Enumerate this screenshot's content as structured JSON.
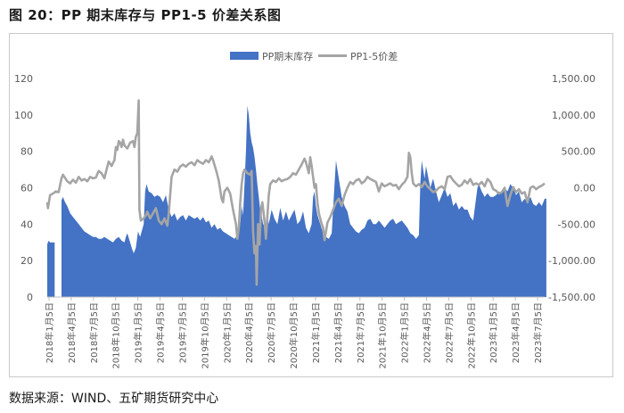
{
  "figure_title": "图 20：PP 期末库存与 PP1-5 价差关系图",
  "source_note": "数据来源：WIND、五矿期货研究中心",
  "chart_data": {
    "type": "bar+line",
    "legend": [
      "PP期末库存",
      "PP1-5价差"
    ],
    "legend_position": "top-center",
    "grid": false,
    "x_ticks": [
      "2018年1月5日",
      "2018年4月5日",
      "2018年7月5日",
      "2018年10月5日",
      "2019年1月5日",
      "2019年4月5日",
      "2019年7月5日",
      "2019年10月5日",
      "2020年1月5日",
      "2020年4月5日",
      "2020年7月5日",
      "2020年10月5日",
      "2021年1月5日",
      "2021年4月5日",
      "2021年7月5日",
      "2021年10月5日",
      "2022年1月5日",
      "2022年4月5日",
      "2022年7月5日",
      "2022年10月5日",
      "2023年1月5日",
      "2023年4月5日",
      "2023年7月5日"
    ],
    "y_left": {
      "ticks": [
        "0",
        "20",
        "40",
        "60",
        "80",
        "100",
        "120"
      ],
      "ylim": [
        0,
        120
      ]
    },
    "y_right": {
      "ticks": [
        "-1,500.00",
        "-1,000.00",
        "-500.00",
        "0.00",
        "500.00",
        "1,000.00",
        "1,500.00"
      ],
      "ylim": [
        -1500,
        1500
      ]
    },
    "colors": {
      "inventory": "#4472C4",
      "spread": "#A5A5A5"
    },
    "inventory": [
      [
        0.0,
        29
      ],
      [
        0.1,
        31
      ],
      [
        0.2,
        30
      ],
      [
        0.4,
        30
      ],
      [
        1.0,
        53
      ],
      [
        1.1,
        55
      ],
      [
        1.25,
        52
      ],
      [
        1.4,
        50
      ],
      [
        1.6,
        46
      ],
      [
        1.8,
        44
      ],
      [
        2.0,
        42
      ],
      [
        2.2,
        40
      ],
      [
        2.4,
        38
      ],
      [
        2.6,
        36
      ],
      [
        2.8,
        35
      ],
      [
        3.0,
        34
      ],
      [
        3.2,
        33
      ],
      [
        3.4,
        33
      ],
      [
        3.6,
        32
      ],
      [
        3.8,
        32
      ],
      [
        4.0,
        33
      ],
      [
        4.2,
        32
      ],
      [
        4.4,
        31
      ],
      [
        4.6,
        30
      ],
      [
        4.8,
        32
      ],
      [
        5.0,
        33
      ],
      [
        5.2,
        31
      ],
      [
        5.4,
        30
      ],
      [
        5.5,
        33
      ],
      [
        5.6,
        35
      ],
      [
        5.8,
        30
      ],
      [
        5.95,
        26
      ],
      [
        6.05,
        24
      ],
      [
        6.2,
        27
      ],
      [
        6.35,
        36
      ],
      [
        6.5,
        33
      ],
      [
        6.75,
        40
      ],
      [
        6.85,
        58
      ],
      [
        6.95,
        62
      ],
      [
        7.1,
        58
      ],
      [
        7.3,
        57
      ],
      [
        7.5,
        55
      ],
      [
        7.7,
        56
      ],
      [
        7.9,
        55
      ],
      [
        8.1,
        52
      ],
      [
        8.3,
        56
      ],
      [
        8.5,
        48
      ],
      [
        8.7,
        44
      ],
      [
        8.9,
        46
      ],
      [
        9.1,
        42
      ],
      [
        9.3,
        44
      ],
      [
        9.5,
        45
      ],
      [
        9.7,
        42
      ],
      [
        9.9,
        45
      ],
      [
        10.1,
        44
      ],
      [
        10.3,
        43
      ],
      [
        10.5,
        44
      ],
      [
        10.7,
        42
      ],
      [
        10.9,
        44
      ],
      [
        11.1,
        41
      ],
      [
        11.3,
        42
      ],
      [
        11.5,
        38
      ],
      [
        11.7,
        40
      ],
      [
        11.9,
        37
      ],
      [
        12.1,
        38
      ],
      [
        12.3,
        36
      ],
      [
        12.5,
        35
      ],
      [
        12.7,
        34
      ],
      [
        12.9,
        33
      ],
      [
        13.1,
        32
      ],
      [
        13.3,
        34
      ],
      [
        13.5,
        40
      ],
      [
        13.6,
        50
      ],
      [
        13.7,
        45
      ],
      [
        13.8,
        62
      ],
      [
        13.9,
        80
      ],
      [
        14.0,
        105
      ],
      [
        14.1,
        100
      ],
      [
        14.2,
        90
      ],
      [
        14.3,
        85
      ],
      [
        14.4,
        82
      ],
      [
        14.5,
        77
      ],
      [
        14.6,
        70
      ],
      [
        14.7,
        62
      ],
      [
        14.8,
        55
      ],
      [
        14.9,
        48
      ],
      [
        15.0,
        45
      ],
      [
        15.1,
        40
      ],
      [
        15.3,
        38
      ],
      [
        15.4,
        47
      ],
      [
        15.5,
        40
      ],
      [
        15.7,
        48
      ],
      [
        15.9,
        43
      ],
      [
        16.1,
        40
      ],
      [
        16.3,
        49
      ],
      [
        16.5,
        42
      ],
      [
        16.7,
        47
      ],
      [
        16.9,
        42
      ],
      [
        17.1,
        45
      ],
      [
        17.3,
        48
      ],
      [
        17.5,
        40
      ],
      [
        17.7,
        42
      ],
      [
        17.9,
        47
      ],
      [
        18.1,
        38
      ],
      [
        18.3,
        35
      ],
      [
        18.5,
        40
      ],
      [
        18.6,
        55
      ],
      [
        18.7,
        58
      ],
      [
        18.8,
        50
      ],
      [
        18.9,
        45
      ],
      [
        19.1,
        40
      ],
      [
        19.3,
        35
      ],
      [
        19.5,
        33
      ],
      [
        19.7,
        32
      ],
      [
        19.9,
        35
      ],
      [
        20.1,
        62
      ],
      [
        20.2,
        75
      ],
      [
        20.3,
        70
      ],
      [
        20.4,
        65
      ],
      [
        20.5,
        60
      ],
      [
        20.6,
        55
      ],
      [
        20.8,
        50
      ],
      [
        21.0,
        47
      ],
      [
        21.2,
        40
      ],
      [
        21.4,
        38
      ],
      [
        21.6,
        36
      ],
      [
        21.8,
        35
      ],
      [
        22.0,
        37
      ],
      [
        22.2,
        38
      ],
      [
        22.4,
        42
      ],
      [
        22.6,
        43
      ],
      [
        22.8,
        40
      ],
      [
        23.0,
        40
      ],
      [
        23.2,
        42
      ],
      [
        23.4,
        40
      ],
      [
        23.6,
        38
      ],
      [
        23.8,
        40
      ],
      [
        24.0,
        42
      ],
      [
        24.2,
        43
      ],
      [
        24.4,
        40
      ],
      [
        24.6,
        41
      ],
      [
        24.8,
        42
      ],
      [
        25.0,
        40
      ],
      [
        25.2,
        38
      ],
      [
        25.4,
        35
      ],
      [
        25.6,
        34
      ],
      [
        25.8,
        32
      ],
      [
        26.0,
        34
      ],
      [
        26.1,
        62
      ],
      [
        26.2,
        75
      ],
      [
        26.3,
        70
      ],
      [
        26.4,
        65
      ],
      [
        26.5,
        72
      ],
      [
        26.6,
        68
      ],
      [
        26.8,
        60
      ],
      [
        27.0,
        65
      ],
      [
        27.2,
        58
      ],
      [
        27.4,
        52
      ],
      [
        27.6,
        56
      ],
      [
        27.8,
        60
      ],
      [
        28.0,
        55
      ],
      [
        28.2,
        57
      ],
      [
        28.4,
        50
      ],
      [
        28.6,
        52
      ],
      [
        28.8,
        48
      ],
      [
        29.0,
        50
      ],
      [
        29.2,
        48
      ],
      [
        29.4,
        48
      ],
      [
        29.6,
        44
      ],
      [
        29.8,
        42
      ],
      [
        30.1,
        60
      ],
      [
        30.2,
        62
      ],
      [
        30.4,
        58
      ],
      [
        30.6,
        55
      ],
      [
        30.8,
        57
      ],
      [
        31.0,
        55
      ],
      [
        31.2,
        55
      ],
      [
        31.4,
        56
      ],
      [
        31.6,
        58
      ],
      [
        31.8,
        57
      ],
      [
        32.0,
        60
      ],
      [
        32.2,
        58
      ],
      [
        32.4,
        62
      ],
      [
        32.6,
        60
      ],
      [
        32.8,
        56
      ],
      [
        33.0,
        58
      ],
      [
        33.2,
        52
      ],
      [
        33.4,
        54
      ],
      [
        33.6,
        52
      ],
      [
        33.8,
        55
      ],
      [
        34.0,
        51
      ],
      [
        34.2,
        50
      ],
      [
        34.4,
        52
      ],
      [
        34.6,
        50
      ],
      [
        34.8,
        54
      ]
    ],
    "spread": [
      [
        0.0,
        -200
      ],
      [
        0.05,
        -280
      ],
      [
        0.2,
        -100
      ],
      [
        0.4,
        -80
      ],
      [
        0.6,
        -50
      ],
      [
        0.8,
        -60
      ],
      [
        1.0,
        130
      ],
      [
        1.1,
        180
      ],
      [
        1.2,
        150
      ],
      [
        1.4,
        90
      ],
      [
        1.6,
        60
      ],
      [
        1.8,
        110
      ],
      [
        2.0,
        70
      ],
      [
        2.2,
        150
      ],
      [
        2.4,
        100
      ],
      [
        2.6,
        120
      ],
      [
        2.8,
        90
      ],
      [
        3.0,
        150
      ],
      [
        3.2,
        130
      ],
      [
        3.4,
        140
      ],
      [
        3.6,
        230
      ],
      [
        3.8,
        200
      ],
      [
        4.0,
        130
      ],
      [
        4.1,
        210
      ],
      [
        4.3,
        360
      ],
      [
        4.5,
        300
      ],
      [
        4.7,
        380
      ],
      [
        4.8,
        560
      ],
      [
        4.9,
        520
      ],
      [
        5.0,
        640
      ],
      [
        5.1,
        620
      ],
      [
        5.2,
        560
      ],
      [
        5.3,
        660
      ],
      [
        5.4,
        580
      ],
      [
        5.6,
        540
      ],
      [
        5.8,
        620
      ],
      [
        6.0,
        640
      ],
      [
        6.1,
        560
      ],
      [
        6.2,
        700
      ],
      [
        6.3,
        750
      ],
      [
        6.4,
        1200
      ],
      [
        6.45,
        -300
      ],
      [
        6.55,
        -450
      ],
      [
        6.7,
        -430
      ],
      [
        6.9,
        -380
      ],
      [
        7.0,
        -330
      ],
      [
        7.2,
        -420
      ],
      [
        7.4,
        -350
      ],
      [
        7.6,
        -280
      ],
      [
        7.8,
        -450
      ],
      [
        8.0,
        -500
      ],
      [
        8.2,
        -420
      ],
      [
        8.4,
        -520
      ],
      [
        8.5,
        -350
      ],
      [
        8.6,
        -100
      ],
      [
        8.7,
        150
      ],
      [
        8.9,
        250
      ],
      [
        9.1,
        220
      ],
      [
        9.3,
        290
      ],
      [
        9.5,
        320
      ],
      [
        9.7,
        290
      ],
      [
        9.9,
        330
      ],
      [
        10.1,
        350
      ],
      [
        10.3,
        310
      ],
      [
        10.5,
        380
      ],
      [
        10.7,
        350
      ],
      [
        10.9,
        330
      ],
      [
        11.1,
        380
      ],
      [
        11.3,
        350
      ],
      [
        11.5,
        430
      ],
      [
        11.6,
        380
      ],
      [
        11.8,
        250
      ],
      [
        12.0,
        100
      ],
      [
        12.2,
        -150
      ],
      [
        12.3,
        -200
      ],
      [
        12.4,
        -50
      ],
      [
        12.6,
        0
      ],
      [
        12.8,
        -80
      ],
      [
        13.0,
        -300
      ],
      [
        13.2,
        -500
      ],
      [
        13.3,
        -700
      ],
      [
        13.4,
        -550
      ],
      [
        13.5,
        -200
      ],
      [
        13.6,
        50
      ],
      [
        13.7,
        200
      ],
      [
        13.8,
        250
      ],
      [
        14.0,
        200
      ],
      [
        14.2,
        180
      ],
      [
        14.3,
        230
      ],
      [
        14.4,
        -600
      ],
      [
        14.5,
        -900
      ],
      [
        14.6,
        -800
      ],
      [
        14.65,
        -1330
      ],
      [
        14.75,
        -500
      ],
      [
        14.85,
        -780
      ],
      [
        14.95,
        -300
      ],
      [
        15.05,
        -200
      ],
      [
        15.2,
        -450
      ],
      [
        15.3,
        -700
      ],
      [
        15.4,
        -400
      ],
      [
        15.5,
        -100
      ],
      [
        15.6,
        50
      ],
      [
        15.8,
        100
      ],
      [
        16.0,
        80
      ],
      [
        16.2,
        130
      ],
      [
        16.4,
        90
      ],
      [
        16.6,
        110
      ],
      [
        16.8,
        120
      ],
      [
        17.0,
        150
      ],
      [
        17.2,
        200
      ],
      [
        17.4,
        180
      ],
      [
        17.6,
        250
      ],
      [
        17.8,
        320
      ],
      [
        18.0,
        400
      ],
      [
        18.1,
        350
      ],
      [
        18.2,
        280
      ],
      [
        18.3,
        200
      ],
      [
        18.4,
        420
      ],
      [
        18.5,
        300
      ],
      [
        18.6,
        150
      ],
      [
        18.7,
        0
      ],
      [
        18.8,
        50
      ],
      [
        18.9,
        -200
      ],
      [
        19.0,
        -350
      ],
      [
        19.2,
        -500
      ],
      [
        19.3,
        -550
      ],
      [
        19.4,
        -720
      ],
      [
        19.6,
        -480
      ],
      [
        19.8,
        -400
      ],
      [
        20.0,
        -300
      ],
      [
        20.2,
        -200
      ],
      [
        20.4,
        -150
      ],
      [
        20.6,
        -250
      ],
      [
        20.8,
        -100
      ],
      [
        21.0,
        0
      ],
      [
        21.2,
        80
      ],
      [
        21.4,
        50
      ],
      [
        21.6,
        100
      ],
      [
        21.8,
        120
      ],
      [
        22.0,
        60
      ],
      [
        22.2,
        90
      ],
      [
        22.4,
        150
      ],
      [
        22.6,
        120
      ],
      [
        22.8,
        100
      ],
      [
        23.0,
        80
      ],
      [
        23.2,
        -50
      ],
      [
        23.4,
        60
      ],
      [
        23.6,
        20
      ],
      [
        23.8,
        40
      ],
      [
        24.0,
        60
      ],
      [
        24.2,
        30
      ],
      [
        24.4,
        40
      ],
      [
        24.6,
        -20
      ],
      [
        24.8,
        40
      ],
      [
        25.0,
        80
      ],
      [
        25.2,
        150
      ],
      [
        25.3,
        480
      ],
      [
        25.4,
        420
      ],
      [
        25.5,
        200
      ],
      [
        25.6,
        60
      ],
      [
        25.8,
        20
      ],
      [
        26.0,
        50
      ],
      [
        26.2,
        10
      ],
      [
        26.4,
        80
      ],
      [
        26.6,
        20
      ],
      [
        26.8,
        -20
      ],
      [
        27.0,
        -60
      ],
      [
        27.2,
        -40
      ],
      [
        27.4,
        0
      ],
      [
        27.6,
        20
      ],
      [
        27.8,
        -20
      ],
      [
        28.0,
        150
      ],
      [
        28.2,
        160
      ],
      [
        28.4,
        100
      ],
      [
        28.6,
        60
      ],
      [
        28.8,
        20
      ],
      [
        29.0,
        40
      ],
      [
        29.2,
        100
      ],
      [
        29.4,
        60
      ],
      [
        29.6,
        120
      ],
      [
        29.8,
        40
      ],
      [
        30.0,
        60
      ],
      [
        30.2,
        40
      ],
      [
        30.4,
        80
      ],
      [
        30.6,
        20
      ],
      [
        30.8,
        120
      ],
      [
        31.0,
        80
      ],
      [
        31.2,
        -20
      ],
      [
        31.4,
        -40
      ],
      [
        31.6,
        -80
      ],
      [
        31.8,
        -60
      ],
      [
        32.0,
        0
      ],
      [
        32.2,
        -250
      ],
      [
        32.4,
        -100
      ],
      [
        32.6,
        10
      ],
      [
        32.8,
        -60
      ],
      [
        33.0,
        -20
      ],
      [
        33.2,
        -80
      ],
      [
        33.4,
        -60
      ],
      [
        33.6,
        -200
      ],
      [
        33.8,
        0
      ],
      [
        34.0,
        20
      ],
      [
        34.2,
        -20
      ],
      [
        34.4,
        10
      ],
      [
        34.6,
        30
      ],
      [
        34.8,
        60
      ]
    ]
  }
}
